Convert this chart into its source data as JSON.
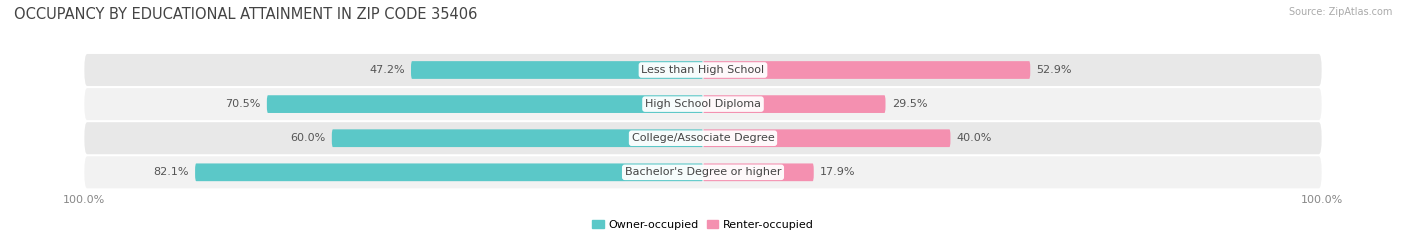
{
  "title": "OCCUPANCY BY EDUCATIONAL ATTAINMENT IN ZIP CODE 35406",
  "source": "Source: ZipAtlas.com",
  "categories": [
    "Less than High School",
    "High School Diploma",
    "College/Associate Degree",
    "Bachelor's Degree or higher"
  ],
  "owner_values": [
    47.2,
    70.5,
    60.0,
    82.1
  ],
  "renter_values": [
    52.9,
    29.5,
    40.0,
    17.9
  ],
  "owner_color": "#5bc8c8",
  "renter_color": "#f490b0",
  "row_bg_color_odd": "#e8e8e8",
  "row_bg_color_even": "#f2f2f2",
  "title_fontsize": 10.5,
  "label_fontsize": 8,
  "value_fontsize": 8,
  "legend_owner": "Owner-occupied",
  "legend_renter": "Renter-occupied",
  "background_color": "#ffffff",
  "figsize": [
    14.06,
    2.33
  ],
  "dpi": 100
}
